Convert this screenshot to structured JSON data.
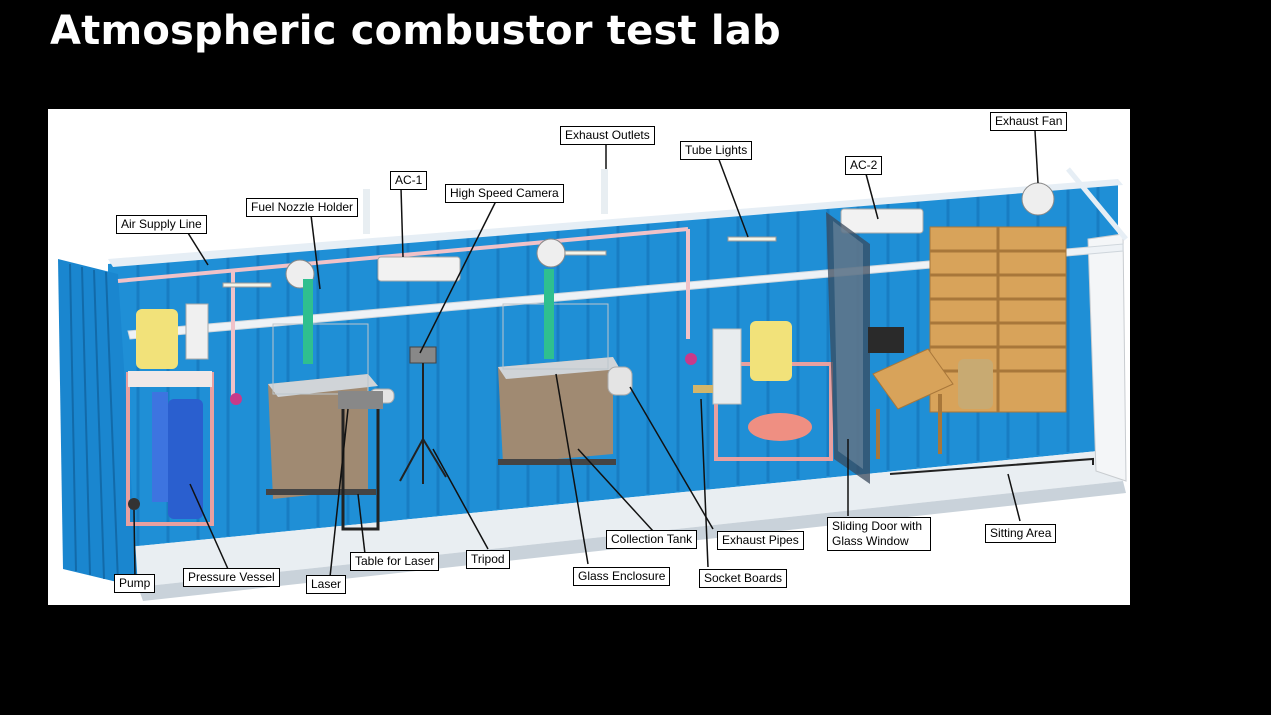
{
  "slide": {
    "title": "Atmospheric combustor test lab"
  },
  "labels": {
    "air_supply_line": "Air Supply Line",
    "fuel_nozzle_holder": "Fuel Nozzle Holder",
    "ac1": "AC-1",
    "high_speed_camera": "High Speed Camera",
    "exhaust_outlets": "Exhaust Outlets",
    "tube_lights": "Tube Lights",
    "ac2": "AC-2",
    "exhaust_fan": "Exhaust Fan",
    "pump": "Pump",
    "pressure_vessel": "Pressure Vessel",
    "laser": "Laser",
    "table_for_laser": "Table for Laser",
    "tripod": "Tripod",
    "glass_enclosure": "Glass Enclosure",
    "collection_tank": "Collection Tank",
    "socket_boards": "Socket Boards",
    "exhaust_pipes": "Exhaust Pipes",
    "sliding_door": "Sliding Door with Glass Window",
    "sitting_area": "Sitting Area"
  },
  "colors": {
    "container_wall": "#1f8fd6",
    "container_dark": "#1470b5",
    "floor": "#e9eef2",
    "frame_pink": "#e8a0a0",
    "vessel_blue": "#2a5fcf",
    "tank_yellow": "#f2e27a",
    "shelf_wood": "#d8a35a",
    "enclosure_brown": "#a08a72"
  }
}
